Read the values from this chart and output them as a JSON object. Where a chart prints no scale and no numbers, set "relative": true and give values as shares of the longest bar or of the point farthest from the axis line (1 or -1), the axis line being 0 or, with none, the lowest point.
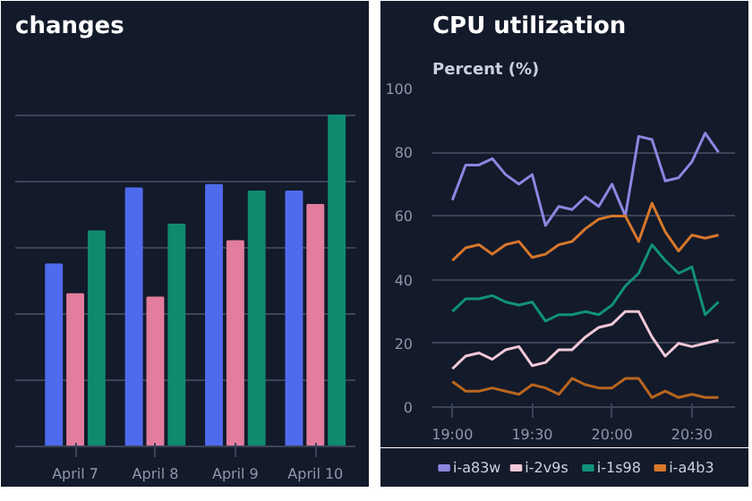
{
  "chart_data": [
    {
      "type": "bar",
      "title": "changes",
      "categories": [
        "April 7",
        "April 8",
        "April 9",
        "April 10"
      ],
      "relative": true,
      "grid": "y",
      "series": [
        {
          "color": "#4f6bed",
          "values": [
            0.55,
            0.78,
            0.79,
            0.77
          ]
        },
        {
          "color": "#e27d9e",
          "values": [
            0.46,
            0.45,
            0.62,
            0.73
          ]
        },
        {
          "color": "#0f8a6e",
          "values": [
            0.65,
            0.67,
            0.77,
            1
          ]
        }
      ]
    },
    {
      "type": "line",
      "title": "CPU utilization",
      "ylabel": "Percent (%)",
      "grid": "y",
      "legend": "bottom",
      "x": [
        19,
        19.0833,
        19.1667,
        19.25,
        19.3333,
        19.4167,
        19.5,
        19.5833,
        19.6667,
        19.75,
        19.8333,
        19.9167,
        20,
        20.0833,
        20.1667,
        20.25,
        20.3333,
        20.4167,
        20.5,
        20.5833,
        20.6667
      ],
      "xlim": [
        18.875,
        20.77
      ],
      "xticks": [
        {
          "value": 19,
          "label": "19:00"
        },
        {
          "value": 19.5,
          "label": "19:30"
        },
        {
          "value": 20,
          "label": "20:00"
        },
        {
          "value": 20.5,
          "label": "20:30"
        }
      ],
      "ylim": [
        0,
        100
      ],
      "yticks": [
        0,
        20,
        40,
        60,
        80,
        100
      ],
      "series": [
        {
          "name": "i-a83w",
          "color": "#8c86e0",
          "values": [
            65,
            76,
            76,
            78,
            73,
            70,
            73,
            57,
            63,
            62,
            66,
            63,
            70,
            60,
            85,
            84,
            71,
            72,
            77,
            86,
            80
          ]
        },
        {
          "name": "i-2v9s",
          "color": "#f0c8d8",
          "values": [
            12,
            16,
            17,
            15,
            18,
            19,
            13,
            14,
            18,
            18,
            22,
            25,
            26,
            30,
            30,
            22,
            16,
            20,
            19,
            20,
            21
          ]
        },
        {
          "name": "i-1s98",
          "color": "#12917a",
          "values": [
            30,
            34,
            34,
            35,
            33,
            32,
            33,
            27,
            29,
            29,
            30,
            29,
            32,
            38,
            42,
            51,
            46,
            42,
            44,
            29,
            33
          ]
        },
        {
          "name": "i-a4b3",
          "color": "#d7772b",
          "values": [
            46,
            50,
            51,
            48,
            51,
            52,
            47,
            48,
            51,
            52,
            56,
            59,
            60,
            60,
            52,
            64,
            55,
            49,
            54,
            53,
            54
          ]
        },
        {
          "color": "#b8651f",
          "values": [
            8,
            5,
            5,
            6,
            5,
            4,
            7,
            6,
            4,
            9,
            7,
            6,
            6,
            9,
            9,
            3,
            5,
            3,
            4,
            3,
            3
          ]
        }
      ]
    }
  ]
}
